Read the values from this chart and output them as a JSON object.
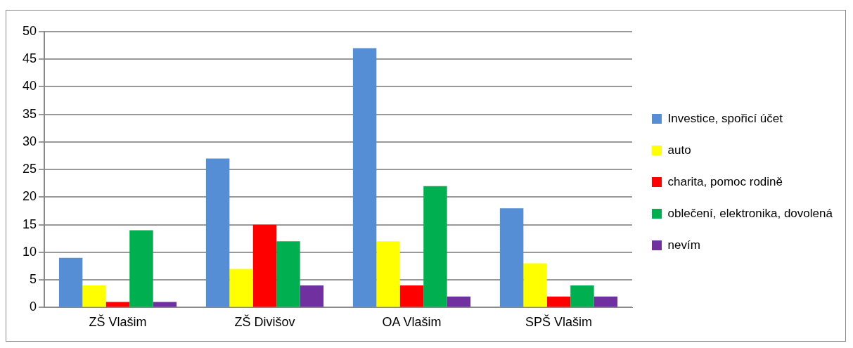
{
  "chart_data": {
    "type": "bar",
    "categories": [
      "ZŠ Vlašim",
      "ZŠ Divišov",
      "OA Vlašim",
      "SPŠ Vlašim"
    ],
    "series": [
      {
        "name": "Investice, spořicí účet",
        "color": "#558ed5",
        "values": [
          9,
          27,
          47,
          18
        ]
      },
      {
        "name": "auto",
        "color": "#ffff00",
        "values": [
          4,
          7,
          12,
          8
        ]
      },
      {
        "name": "charita, pomoc rodině",
        "color": "#ff0000",
        "values": [
          1,
          15,
          4,
          2
        ]
      },
      {
        "name": "oblečení, elektronika, dovolená",
        "color": "#00b050",
        "values": [
          14,
          12,
          22,
          4
        ]
      },
      {
        "name": "nevím",
        "color": "#7030a0",
        "values": [
          1,
          4,
          2,
          2
        ]
      }
    ],
    "ylim": [
      0,
      50
    ],
    "yticks": [
      0,
      5,
      10,
      15,
      20,
      25,
      30,
      35,
      40,
      45,
      50
    ],
    "grid": "y",
    "legend": "right"
  }
}
